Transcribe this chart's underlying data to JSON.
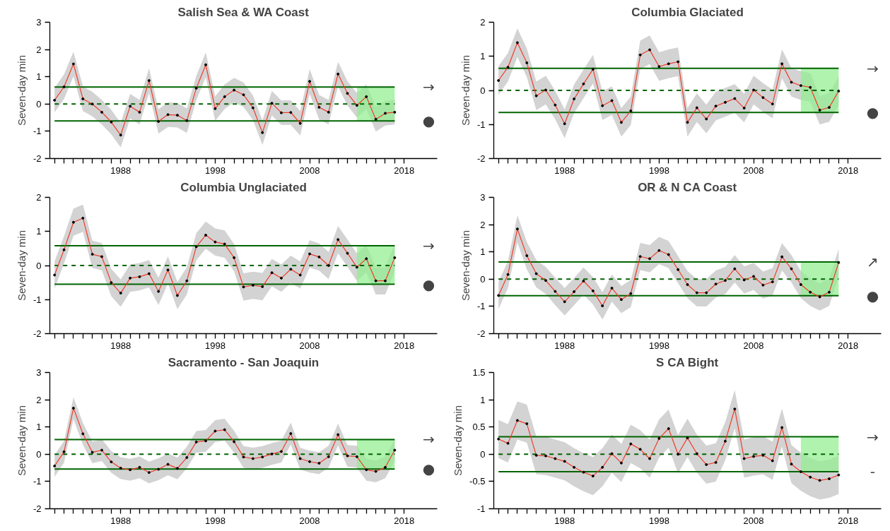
{
  "chart_data": [
    {
      "type": "line",
      "title": "Salish Sea & WA Coast",
      "ylabel": "Seven-day min",
      "marker": "circle",
      "xlim": [
        1980.5,
        2021.5
      ],
      "ylim": [
        -2,
        3
      ],
      "yticks": [
        -2,
        -1,
        0,
        1,
        2,
        3
      ],
      "xticks": [
        {
          "value": 1981,
          "label": null
        },
        {
          "value": 1982,
          "label": null
        },
        {
          "value": 1983,
          "label": null
        },
        {
          "value": 1984,
          "label": null
        },
        {
          "value": 1985,
          "label": null
        },
        {
          "value": 1986,
          "label": null
        },
        {
          "value": 1987,
          "label": null
        },
        1988,
        {
          "value": 1989,
          "label": null
        },
        {
          "value": 1990,
          "label": null
        },
        {
          "value": 1991,
          "label": null
        },
        {
          "value": 1992,
          "label": null
        },
        {
          "value": 1993,
          "label": null
        },
        {
          "value": 1994,
          "label": null
        },
        {
          "value": 1995,
          "label": null
        },
        {
          "value": 1996,
          "label": null
        },
        {
          "value": 1997,
          "label": null
        },
        1998,
        {
          "value": 1999,
          "label": null
        },
        {
          "value": 2000,
          "label": null
        },
        {
          "value": 2001,
          "label": null
        },
        {
          "value": 2002,
          "label": null
        },
        {
          "value": 2003,
          "label": null
        },
        {
          "value": 2004,
          "label": null
        },
        {
          "value": 2005,
          "label": null
        },
        {
          "value": 2006,
          "label": null
        },
        {
          "value": 2007,
          "label": null
        },
        2008,
        {
          "value": 2009,
          "label": null
        },
        {
          "value": 2010,
          "label": null
        },
        {
          "value": 2011,
          "label": null
        },
        {
          "value": 2012,
          "label": null
        },
        {
          "value": 2013,
          "label": null
        },
        {
          "value": 2014,
          "label": null
        },
        {
          "value": 2015,
          "label": null
        },
        {
          "value": 2016,
          "label": null
        },
        {
          "value": 2017,
          "label": null
        },
        2018
      ],
      "x": [
        1981,
        1982,
        1983,
        1984,
        1985,
        1986,
        1987,
        1988,
        1989,
        1990,
        1991,
        1992,
        1993,
        1994,
        1995,
        1996,
        1997,
        1998,
        1999,
        2000,
        2001,
        2002,
        2003,
        2004,
        2005,
        2006,
        2007,
        2008,
        2009,
        2010,
        2011,
        2012,
        2013,
        2014,
        2015,
        2016,
        2017
      ],
      "series": [
        {
          "color": "#f03c2a",
          "line_style": "solid",
          "values": [
            0.14,
            0.63,
            1.47,
            0.19,
            0.0,
            -0.3,
            -0.66,
            -1.14,
            -0.08,
            -0.3,
            0.86,
            -0.64,
            -0.39,
            -0.41,
            -0.61,
            0.58,
            1.44,
            -0.17,
            0.27,
            0.51,
            0.34,
            -0.14,
            -1.05,
            0.03,
            -0.32,
            -0.31,
            -0.71,
            0.83,
            -0.12,
            -0.3,
            1.1,
            0.39,
            -0.05,
            0.27,
            -0.56,
            -0.34,
            -0.3
          ],
          "lower": [
            -0.31,
            0.18,
            1.02,
            -0.26,
            -0.45,
            -0.75,
            -1.11,
            -1.59,
            -0.53,
            -0.75,
            0.41,
            -1.09,
            -0.84,
            -0.86,
            -1.06,
            0.13,
            0.99,
            -0.62,
            -0.18,
            0.06,
            -0.11,
            -0.59,
            -1.5,
            -0.42,
            -0.77,
            -0.76,
            -1.16,
            0.38,
            -0.57,
            -0.75,
            0.65,
            -0.06,
            -0.5,
            -0.18,
            -1.01,
            -0.79,
            -0.75
          ],
          "upper": [
            0.59,
            1.08,
            1.92,
            0.64,
            0.45,
            0.15,
            -0.21,
            -0.69,
            0.37,
            0.15,
            1.31,
            -0.19,
            0.06,
            0.04,
            -0.16,
            1.03,
            1.89,
            0.28,
            0.72,
            0.96,
            0.79,
            0.31,
            -0.6,
            0.48,
            0.13,
            0.14,
            -0.26,
            1.28,
            0.33,
            0.15,
            1.55,
            0.84,
            0.4,
            0.72,
            -0.11,
            0.11,
            0.15
          ]
        }
      ],
      "ref_lines": [
        {
          "axis": "y",
          "value": 0.62,
          "color": "#006400",
          "line_style": "solid"
        },
        {
          "axis": "y",
          "value": 0,
          "color": "#006400",
          "line_style": "dashed"
        },
        {
          "axis": "y",
          "value": -0.62,
          "color": "#006400",
          "line_style": "solid"
        }
      ],
      "bands": [
        {
          "axis": "x",
          "from": 2013,
          "to": 2017,
          "color": "#90ee90"
        }
      ],
      "annotations": [
        "→",
        "●"
      ]
    },
    {
      "type": "line",
      "title": "Columbia Glaciated",
      "ylabel": "Seven-day min",
      "marker": "circle",
      "xlim": [
        1980.5,
        2021.5
      ],
      "ylim": [
        -2,
        2
      ],
      "yticks": [
        -2,
        -1,
        0,
        1,
        2
      ],
      "xticks": [
        {
          "value": 1981,
          "label": null
        },
        {
          "value": 1982,
          "label": null
        },
        {
          "value": 1983,
          "label": null
        },
        {
          "value": 1984,
          "label": null
        },
        {
          "value": 1985,
          "label": null
        },
        {
          "value": 1986,
          "label": null
        },
        {
          "value": 1987,
          "label": null
        },
        1988,
        {
          "value": 1989,
          "label": null
        },
        {
          "value": 1990,
          "label": null
        },
        {
          "value": 1991,
          "label": null
        },
        {
          "value": 1992,
          "label": null
        },
        {
          "value": 1993,
          "label": null
        },
        {
          "value": 1994,
          "label": null
        },
        {
          "value": 1995,
          "label": null
        },
        {
          "value": 1996,
          "label": null
        },
        {
          "value": 1997,
          "label": null
        },
        1998,
        {
          "value": 1999,
          "label": null
        },
        {
          "value": 2000,
          "label": null
        },
        {
          "value": 2001,
          "label": null
        },
        {
          "value": 2002,
          "label": null
        },
        {
          "value": 2003,
          "label": null
        },
        {
          "value": 2004,
          "label": null
        },
        {
          "value": 2005,
          "label": null
        },
        {
          "value": 2006,
          "label": null
        },
        {
          "value": 2007,
          "label": null
        },
        2008,
        {
          "value": 2009,
          "label": null
        },
        {
          "value": 2010,
          "label": null
        },
        {
          "value": 2011,
          "label": null
        },
        {
          "value": 2012,
          "label": null
        },
        {
          "value": 2013,
          "label": null
        },
        {
          "value": 2014,
          "label": null
        },
        {
          "value": 2015,
          "label": null
        },
        {
          "value": 2016,
          "label": null
        },
        {
          "value": 2017,
          "label": null
        },
        2018
      ],
      "x": [
        1981,
        1982,
        1983,
        1984,
        1985,
        1986,
        1987,
        1988,
        1989,
        1990,
        1991,
        1992,
        1993,
        1994,
        1995,
        1996,
        1997,
        1998,
        1999,
        2000,
        2001,
        2002,
        2003,
        2004,
        2005,
        2006,
        2007,
        2008,
        2009,
        2010,
        2011,
        2012,
        2013,
        2014,
        2015,
        2016,
        2017
      ],
      "series": [
        {
          "color": "#f03c2a",
          "line_style": "solid",
          "values": [
            0.29,
            0.68,
            1.4,
            0.81,
            -0.16,
            0.01,
            -0.43,
            -0.98,
            -0.25,
            0.19,
            0.62,
            -0.45,
            -0.3,
            -0.94,
            -0.6,
            1.04,
            1.19,
            0.7,
            0.78,
            0.84,
            -0.94,
            -0.51,
            -0.84,
            -0.46,
            -0.35,
            -0.24,
            -0.52,
            0.01,
            -0.21,
            -0.4,
            0.78,
            0.24,
            0.14,
            0.09,
            -0.58,
            -0.5,
            -0.02
          ],
          "lower": [
            -0.13,
            0.26,
            0.98,
            0.39,
            -0.58,
            -0.41,
            -0.85,
            -1.4,
            -0.67,
            -0.23,
            0.2,
            -0.87,
            -0.72,
            -1.36,
            -1.02,
            0.62,
            0.77,
            0.28,
            0.36,
            0.42,
            -1.36,
            -0.93,
            -1.26,
            -0.88,
            -0.77,
            -0.66,
            -0.94,
            -0.41,
            -0.63,
            -0.82,
            0.36,
            -0.18,
            -0.28,
            -0.33,
            -1.0,
            -0.92,
            -0.44
          ],
          "upper": [
            0.71,
            1.1,
            1.82,
            1.23,
            0.26,
            0.43,
            -0.01,
            -0.56,
            0.17,
            0.61,
            1.04,
            -0.03,
            0.12,
            -0.52,
            -0.18,
            1.46,
            1.61,
            1.12,
            1.2,
            1.26,
            -0.52,
            -0.09,
            -0.42,
            -0.04,
            0.07,
            0.18,
            -0.1,
            0.43,
            0.21,
            0.02,
            1.2,
            0.66,
            0.56,
            0.51,
            -0.16,
            -0.08,
            0.4
          ]
        }
      ],
      "ref_lines": [
        {
          "axis": "y",
          "value": 0.65,
          "color": "#006400",
          "line_style": "solid"
        },
        {
          "axis": "y",
          "value": 0,
          "color": "#006400",
          "line_style": "dashed"
        },
        {
          "axis": "y",
          "value": -0.65,
          "color": "#006400",
          "line_style": "solid"
        }
      ],
      "bands": [
        {
          "axis": "x",
          "from": 2013,
          "to": 2017,
          "color": "#90ee90"
        }
      ],
      "annotations": [
        "→",
        "●"
      ]
    },
    {
      "type": "line",
      "title": "Columbia Unglaciated",
      "ylabel": "Seven-day min",
      "marker": "circle",
      "xlim": [
        1980.5,
        2021.5
      ],
      "ylim": [
        -2,
        2
      ],
      "yticks": [
        -2,
        -1,
        0,
        1,
        2
      ],
      "xticks": [
        {
          "value": 1981,
          "label": null
        },
        {
          "value": 1982,
          "label": null
        },
        {
          "value": 1983,
          "label": null
        },
        {
          "value": 1984,
          "label": null
        },
        {
          "value": 1985,
          "label": null
        },
        {
          "value": 1986,
          "label": null
        },
        {
          "value": 1987,
          "label": null
        },
        1988,
        {
          "value": 1989,
          "label": null
        },
        {
          "value": 1990,
          "label": null
        },
        {
          "value": 1991,
          "label": null
        },
        {
          "value": 1992,
          "label": null
        },
        {
          "value": 1993,
          "label": null
        },
        {
          "value": 1994,
          "label": null
        },
        {
          "value": 1995,
          "label": null
        },
        {
          "value": 1996,
          "label": null
        },
        {
          "value": 1997,
          "label": null
        },
        1998,
        {
          "value": 1999,
          "label": null
        },
        {
          "value": 2000,
          "label": null
        },
        {
          "value": 2001,
          "label": null
        },
        {
          "value": 2002,
          "label": null
        },
        {
          "value": 2003,
          "label": null
        },
        {
          "value": 2004,
          "label": null
        },
        {
          "value": 2005,
          "label": null
        },
        {
          "value": 2006,
          "label": null
        },
        {
          "value": 2007,
          "label": null
        },
        2008,
        {
          "value": 2009,
          "label": null
        },
        {
          "value": 2010,
          "label": null
        },
        {
          "value": 2011,
          "label": null
        },
        {
          "value": 2012,
          "label": null
        },
        {
          "value": 2013,
          "label": null
        },
        {
          "value": 2014,
          "label": null
        },
        {
          "value": 2015,
          "label": null
        },
        {
          "value": 2016,
          "label": null
        },
        {
          "value": 2017,
          "label": null
        },
        2018
      ],
      "x": [
        1981,
        1982,
        1983,
        1984,
        1985,
        1986,
        1987,
        1988,
        1989,
        1990,
        1991,
        1992,
        1993,
        1994,
        1995,
        1996,
        1997,
        1998,
        1999,
        2000,
        2001,
        2002,
        2003,
        2004,
        2005,
        2006,
        2007,
        2008,
        2009,
        2010,
        2011,
        2012,
        2013,
        2014,
        2015,
        2016,
        2017
      ],
      "series": [
        {
          "color": "#f03c2a",
          "line_style": "solid",
          "values": [
            -0.28,
            0.46,
            1.27,
            1.39,
            0.33,
            0.26,
            -0.5,
            -0.81,
            -0.37,
            -0.33,
            -0.24,
            -0.76,
            -0.13,
            -0.88,
            -0.45,
            0.55,
            0.89,
            0.69,
            0.63,
            0.23,
            -0.63,
            -0.58,
            -0.62,
            -0.21,
            -0.37,
            -0.11,
            -0.28,
            0.34,
            0.25,
            0.0,
            0.76,
            0.36,
            -0.05,
            0.2,
            -0.45,
            -0.45,
            0.23
          ],
          "lower": [
            -0.68,
            0.06,
            0.87,
            0.99,
            -0.07,
            -0.14,
            -0.9,
            -1.21,
            -0.77,
            -0.73,
            -0.64,
            -1.16,
            -0.53,
            -1.28,
            -0.85,
            0.15,
            0.49,
            0.29,
            0.23,
            -0.17,
            -1.03,
            -0.98,
            -1.02,
            -0.61,
            -0.77,
            -0.51,
            -0.68,
            -0.06,
            -0.15,
            -0.4,
            0.36,
            -0.04,
            -0.45,
            -0.2,
            -0.85,
            -0.85,
            -0.17
          ],
          "upper": [
            0.12,
            0.86,
            1.67,
            1.79,
            0.73,
            0.66,
            -0.1,
            -0.41,
            0.03,
            0.07,
            0.16,
            -0.36,
            0.27,
            -0.48,
            -0.05,
            0.95,
            1.29,
            1.09,
            1.03,
            0.63,
            -0.23,
            -0.18,
            -0.22,
            0.19,
            0.03,
            0.29,
            0.12,
            0.74,
            0.65,
            0.4,
            1.16,
            0.76,
            0.35,
            0.6,
            -0.05,
            -0.05,
            0.63
          ]
        }
      ],
      "ref_lines": [
        {
          "axis": "y",
          "value": 0.58,
          "color": "#006400",
          "line_style": "solid"
        },
        {
          "axis": "y",
          "value": 0,
          "color": "#006400",
          "line_style": "dashed"
        },
        {
          "axis": "y",
          "value": -0.55,
          "color": "#006400",
          "line_style": "solid"
        }
      ],
      "bands": [
        {
          "axis": "x",
          "from": 2013,
          "to": 2017,
          "color": "#90ee90"
        }
      ],
      "annotations": [
        "→",
        "●"
      ]
    },
    {
      "type": "line",
      "title": "OR & N CA Coast",
      "ylabel": "Seven-day min",
      "marker": "circle",
      "xlim": [
        1980.5,
        2021.5
      ],
      "ylim": [
        -2,
        3
      ],
      "yticks": [
        -2,
        -1,
        0,
        1,
        2,
        3
      ],
      "xticks": [
        {
          "value": 1981,
          "label": null
        },
        {
          "value": 1982,
          "label": null
        },
        {
          "value": 1983,
          "label": null
        },
        {
          "value": 1984,
          "label": null
        },
        {
          "value": 1985,
          "label": null
        },
        {
          "value": 1986,
          "label": null
        },
        {
          "value": 1987,
          "label": null
        },
        1988,
        {
          "value": 1989,
          "label": null
        },
        {
          "value": 1990,
          "label": null
        },
        {
          "value": 1991,
          "label": null
        },
        {
          "value": 1992,
          "label": null
        },
        {
          "value": 1993,
          "label": null
        },
        {
          "value": 1994,
          "label": null
        },
        {
          "value": 1995,
          "label": null
        },
        {
          "value": 1996,
          "label": null
        },
        {
          "value": 1997,
          "label": null
        },
        1998,
        {
          "value": 1999,
          "label": null
        },
        {
          "value": 2000,
          "label": null
        },
        {
          "value": 2001,
          "label": null
        },
        {
          "value": 2002,
          "label": null
        },
        {
          "value": 2003,
          "label": null
        },
        {
          "value": 2004,
          "label": null
        },
        {
          "value": 2005,
          "label": null
        },
        {
          "value": 2006,
          "label": null
        },
        {
          "value": 2007,
          "label": null
        },
        2008,
        {
          "value": 2009,
          "label": null
        },
        {
          "value": 2010,
          "label": null
        },
        {
          "value": 2011,
          "label": null
        },
        {
          "value": 2012,
          "label": null
        },
        {
          "value": 2013,
          "label": null
        },
        {
          "value": 2014,
          "label": null
        },
        {
          "value": 2015,
          "label": null
        },
        {
          "value": 2016,
          "label": null
        },
        {
          "value": 2017,
          "label": null
        },
        2018
      ],
      "x": [
        1981,
        1982,
        1983,
        1984,
        1985,
        1986,
        1987,
        1988,
        1989,
        1990,
        1991,
        1992,
        1993,
        1994,
        1995,
        1996,
        1997,
        1998,
        1999,
        2000,
        2001,
        2002,
        2003,
        2004,
        2005,
        2006,
        2007,
        2008,
        2009,
        2010,
        2011,
        2012,
        2013,
        2014,
        2015,
        2016,
        2017
      ],
      "series": [
        {
          "color": "#f03c2a",
          "line_style": "solid",
          "values": [
            -0.6,
            0.17,
            1.84,
            0.86,
            0.2,
            -0.05,
            -0.45,
            -0.83,
            -0.46,
            -0.07,
            -0.43,
            -0.98,
            -0.33,
            -0.75,
            -0.53,
            0.83,
            0.75,
            1.05,
            0.9,
            0.35,
            -0.2,
            -0.5,
            -0.5,
            -0.18,
            -0.05,
            0.38,
            -0.03,
            0.1,
            -0.22,
            -0.1,
            0.82,
            0.38,
            -0.2,
            -0.48,
            -0.65,
            -0.48,
            0.61
          ],
          "lower": [
            -1.1,
            -0.33,
            1.34,
            0.36,
            -0.3,
            -0.55,
            -0.95,
            -1.33,
            -0.96,
            -0.57,
            -0.93,
            -1.48,
            -0.83,
            -1.25,
            -1.03,
            0.33,
            0.25,
            0.55,
            0.4,
            -0.15,
            -0.7,
            -1.0,
            -1.0,
            -0.68,
            -0.55,
            -0.12,
            -0.53,
            -0.4,
            -0.72,
            -0.6,
            0.32,
            -0.12,
            -0.7,
            -0.98,
            -1.15,
            -0.98,
            0.11
          ],
          "upper": [
            -0.1,
            0.67,
            2.34,
            1.36,
            0.7,
            0.45,
            0.05,
            -0.33,
            0.04,
            0.43,
            0.07,
            -0.48,
            0.17,
            -0.25,
            -0.03,
            1.33,
            1.25,
            1.55,
            1.4,
            0.85,
            0.3,
            0.0,
            0.0,
            0.32,
            0.45,
            0.88,
            0.47,
            0.6,
            0.28,
            0.4,
            1.32,
            0.88,
            0.3,
            0.02,
            -0.15,
            0.02,
            1.11
          ]
        }
      ],
      "ref_lines": [
        {
          "axis": "y",
          "value": 0.63,
          "color": "#006400",
          "line_style": "solid"
        },
        {
          "axis": "y",
          "value": 0,
          "color": "#006400",
          "line_style": "dashed"
        },
        {
          "axis": "y",
          "value": -0.61,
          "color": "#006400",
          "line_style": "solid"
        }
      ],
      "bands": [
        {
          "axis": "x",
          "from": 2013,
          "to": 2017,
          "color": "#90ee90"
        }
      ],
      "annotations": [
        "↗",
        "●"
      ]
    },
    {
      "type": "line",
      "title": "Sacramento - San Joaquin",
      "ylabel": "Seven-day min",
      "marker": "circle",
      "xlim": [
        1980.5,
        2021.5
      ],
      "ylim": [
        -2,
        3
      ],
      "yticks": [
        -2,
        -1,
        0,
        1,
        2,
        3
      ],
      "xticks": [
        {
          "value": 1981,
          "label": null
        },
        {
          "value": 1982,
          "label": null
        },
        {
          "value": 1983,
          "label": null
        },
        {
          "value": 1984,
          "label": null
        },
        {
          "value": 1985,
          "label": null
        },
        {
          "value": 1986,
          "label": null
        },
        {
          "value": 1987,
          "label": null
        },
        1988,
        {
          "value": 1989,
          "label": null
        },
        {
          "value": 1990,
          "label": null
        },
        {
          "value": 1991,
          "label": null
        },
        {
          "value": 1992,
          "label": null
        },
        {
          "value": 1993,
          "label": null
        },
        {
          "value": 1994,
          "label": null
        },
        {
          "value": 1995,
          "label": null
        },
        {
          "value": 1996,
          "label": null
        },
        {
          "value": 1997,
          "label": null
        },
        1998,
        {
          "value": 1999,
          "label": null
        },
        {
          "value": 2000,
          "label": null
        },
        {
          "value": 2001,
          "label": null
        },
        {
          "value": 2002,
          "label": null
        },
        {
          "value": 2003,
          "label": null
        },
        {
          "value": 2004,
          "label": null
        },
        {
          "value": 2005,
          "label": null
        },
        {
          "value": 2006,
          "label": null
        },
        {
          "value": 2007,
          "label": null
        },
        2008,
        {
          "value": 2009,
          "label": null
        },
        {
          "value": 2010,
          "label": null
        },
        {
          "value": 2011,
          "label": null
        },
        {
          "value": 2012,
          "label": null
        },
        {
          "value": 2013,
          "label": null
        },
        {
          "value": 2014,
          "label": null
        },
        {
          "value": 2015,
          "label": null
        },
        {
          "value": 2016,
          "label": null
        },
        {
          "value": 2017,
          "label": null
        },
        2018
      ],
      "x": [
        1981,
        1982,
        1983,
        1984,
        1985,
        1986,
        1987,
        1988,
        1989,
        1990,
        1991,
        1992,
        1993,
        1994,
        1995,
        1996,
        1997,
        1998,
        1999,
        2000,
        2001,
        2002,
        2003,
        2004,
        2005,
        2006,
        2007,
        2008,
        2009,
        2010,
        2011,
        2012,
        2013,
        2014,
        2015,
        2016,
        2017
      ],
      "series": [
        {
          "color": "#f03c2a",
          "line_style": "solid",
          "values": [
            -0.43,
            0.09,
            1.69,
            0.75,
            0.07,
            0.15,
            -0.28,
            -0.51,
            -0.57,
            -0.48,
            -0.67,
            -0.55,
            -0.37,
            -0.52,
            -0.12,
            0.45,
            0.49,
            0.85,
            0.9,
            0.46,
            -0.1,
            -0.16,
            -0.1,
            0.01,
            0.1,
            0.76,
            -0.16,
            -0.27,
            -0.33,
            -0.09,
            0.72,
            -0.06,
            -0.09,
            -0.57,
            -0.63,
            -0.48,
            0.15
          ],
          "lower": [
            -0.83,
            -0.31,
            1.29,
            0.35,
            -0.33,
            -0.25,
            -0.68,
            -0.91,
            -0.97,
            -0.88,
            -1.07,
            -0.95,
            -0.77,
            -0.92,
            -0.52,
            0.05,
            0.09,
            0.45,
            0.5,
            0.06,
            -0.5,
            -0.56,
            -0.5,
            -0.39,
            -0.3,
            0.36,
            -0.56,
            -0.67,
            -0.73,
            -0.49,
            0.32,
            -0.46,
            -0.49,
            -0.97,
            -1.03,
            -0.88,
            -0.25
          ],
          "upper": [
            -0.03,
            0.49,
            2.09,
            1.15,
            0.47,
            0.55,
            0.12,
            -0.11,
            -0.17,
            -0.08,
            -0.27,
            -0.15,
            0.03,
            -0.12,
            0.28,
            0.85,
            0.89,
            1.25,
            1.3,
            0.86,
            0.3,
            0.24,
            0.3,
            0.41,
            0.5,
            1.16,
            0.24,
            0.13,
            0.07,
            0.31,
            1.12,
            0.34,
            0.31,
            -0.17,
            -0.23,
            -0.08,
            0.55
          ]
        }
      ],
      "ref_lines": [
        {
          "axis": "y",
          "value": 0.54,
          "color": "#006400",
          "line_style": "solid"
        },
        {
          "axis": "y",
          "value": 0,
          "color": "#006400",
          "line_style": "dashed"
        },
        {
          "axis": "y",
          "value": -0.54,
          "color": "#006400",
          "line_style": "solid"
        }
      ],
      "bands": [
        {
          "axis": "x",
          "from": 2013,
          "to": 2017,
          "color": "#90ee90"
        }
      ],
      "annotations": [
        "→",
        "●"
      ]
    },
    {
      "type": "line",
      "title": "S CA Bight",
      "ylabel": "Seven-day min",
      "marker": "circle",
      "xlim": [
        1980.5,
        2021.5
      ],
      "ylim": [
        -1,
        1.5
      ],
      "yticks": [
        -1,
        -0.5,
        0,
        0.5,
        1,
        1.5
      ],
      "xticks": [
        {
          "value": 1981,
          "label": null
        },
        {
          "value": 1982,
          "label": null
        },
        {
          "value": 1983,
          "label": null
        },
        {
          "value": 1984,
          "label": null
        },
        {
          "value": 1985,
          "label": null
        },
        {
          "value": 1986,
          "label": null
        },
        {
          "value": 1987,
          "label": null
        },
        1988,
        {
          "value": 1989,
          "label": null
        },
        {
          "value": 1990,
          "label": null
        },
        {
          "value": 1991,
          "label": null
        },
        {
          "value": 1992,
          "label": null
        },
        {
          "value": 1993,
          "label": null
        },
        {
          "value": 1994,
          "label": null
        },
        {
          "value": 1995,
          "label": null
        },
        {
          "value": 1996,
          "label": null
        },
        {
          "value": 1997,
          "label": null
        },
        1998,
        {
          "value": 1999,
          "label": null
        },
        {
          "value": 2000,
          "label": null
        },
        {
          "value": 2001,
          "label": null
        },
        {
          "value": 2002,
          "label": null
        },
        {
          "value": 2003,
          "label": null
        },
        {
          "value": 2004,
          "label": null
        },
        {
          "value": 2005,
          "label": null
        },
        {
          "value": 2006,
          "label": null
        },
        {
          "value": 2007,
          "label": null
        },
        2008,
        {
          "value": 2009,
          "label": null
        },
        {
          "value": 2010,
          "label": null
        },
        {
          "value": 2011,
          "label": null
        },
        {
          "value": 2012,
          "label": null
        },
        {
          "value": 2013,
          "label": null
        },
        {
          "value": 2014,
          "label": null
        },
        {
          "value": 2015,
          "label": null
        },
        {
          "value": 2016,
          "label": null
        },
        {
          "value": 2017,
          "label": null
        },
        2018
      ],
      "x": [
        1981,
        1982,
        1983,
        1984,
        1985,
        1986,
        1987,
        1988,
        1989,
        1990,
        1991,
        1992,
        1993,
        1994,
        1995,
        1996,
        1997,
        1998,
        1999,
        2000,
        2001,
        2002,
        2003,
        2004,
        2005,
        2006,
        2007,
        2008,
        2009,
        2010,
        2011,
        2012,
        2013,
        2014,
        2015,
        2016,
        2017
      ],
      "series": [
        {
          "color": "#f03c2a",
          "line_style": "solid",
          "values": [
            0.28,
            0.2,
            0.62,
            0.56,
            -0.02,
            -0.03,
            -0.08,
            -0.13,
            -0.24,
            -0.33,
            -0.4,
            -0.24,
            0.01,
            -0.16,
            0.19,
            0.09,
            -0.08,
            0.29,
            0.47,
            0.0,
            0.3,
            0.01,
            -0.19,
            -0.15,
            0.24,
            0.83,
            -0.08,
            -0.04,
            -0.02,
            -0.12,
            0.49,
            -0.18,
            -0.32,
            -0.42,
            -0.48,
            -0.45,
            -0.38
          ],
          "lower": [
            -0.07,
            -0.15,
            0.27,
            0.21,
            -0.37,
            -0.38,
            -0.43,
            -0.48,
            -0.59,
            -0.68,
            -0.75,
            -0.59,
            -0.34,
            -0.51,
            -0.16,
            -0.26,
            -0.43,
            -0.06,
            0.12,
            -0.35,
            -0.05,
            -0.34,
            -0.54,
            -0.5,
            -0.11,
            0.48,
            -0.43,
            -0.39,
            -0.37,
            -0.47,
            0.14,
            -0.53,
            -0.67,
            -0.77,
            -0.83,
            -0.8,
            -0.73
          ],
          "upper": [
            0.63,
            0.55,
            0.97,
            0.91,
            0.33,
            0.32,
            0.27,
            0.22,
            0.11,
            0.02,
            -0.05,
            0.11,
            0.36,
            0.19,
            0.54,
            0.44,
            0.27,
            0.64,
            0.82,
            0.35,
            0.65,
            0.36,
            0.16,
            0.2,
            0.59,
            1.18,
            0.27,
            0.31,
            0.33,
            0.23,
            0.84,
            0.17,
            0.03,
            -0.07,
            -0.13,
            -0.1,
            -0.03
          ]
        }
      ],
      "ref_lines": [
        {
          "axis": "y",
          "value": 0.32,
          "color": "#006400",
          "line_style": "solid"
        },
        {
          "axis": "y",
          "value": 0,
          "color": "#006400",
          "line_style": "dashed"
        },
        {
          "axis": "y",
          "value": -0.32,
          "color": "#006400",
          "line_style": "solid"
        }
      ],
      "bands": [
        {
          "axis": "x",
          "from": 2013,
          "to": 2017,
          "color": "#90ee90"
        }
      ],
      "annotations": [
        "→",
        "-"
      ]
    }
  ]
}
